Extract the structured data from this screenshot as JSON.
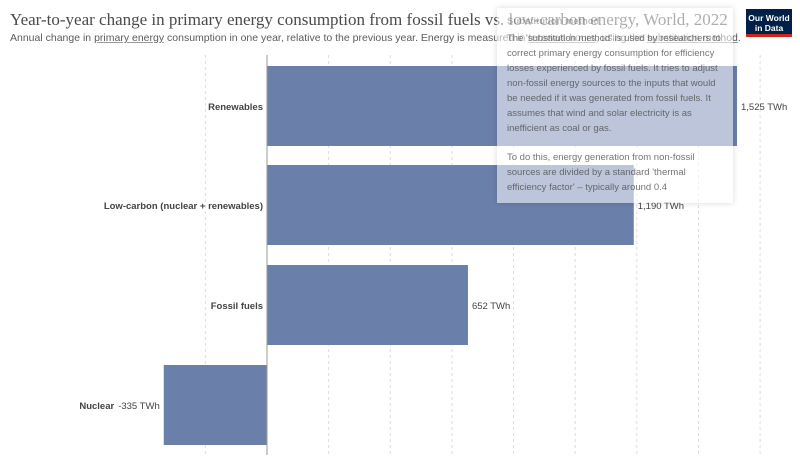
{
  "header": {
    "title": "Year-to-year change in primary energy consumption from fossil fuels vs. low-carbon energy, World, 2022",
    "subtitle_parts": [
      {
        "text": "Annual change in ",
        "u": false
      },
      {
        "text": "primary energy",
        "u": true
      },
      {
        "text": " consumption in one year, relative to the previous year. Energy is measured in ",
        "u": false
      },
      {
        "text": "terawatt-hours",
        "u": true
      },
      {
        "text": ", using the ",
        "u": false
      },
      {
        "text": "substitution method",
        "u": true
      },
      {
        "text": ".",
        "u": false
      }
    ],
    "logo_line1": "Our World",
    "logo_line2": "in Data"
  },
  "tooltip": {
    "title": "Substitution method",
    "p1": "The 'substitution method' is used by researchers to correct primary energy consumption for efficiency losses experienced by fossil fuels. It tries to adjust non-fossil energy sources to the inputs that would be needed if it was generated from fossil fuels. It assumes that wind and solar electricity is as inefficient as coal or gas.",
    "p2": "To do this, energy generation from non-fossil sources are divided by a standard 'thermal efficiency factor' – typically around 0.4"
  },
  "chart_data": {
    "type": "bar",
    "orientation": "horizontal",
    "categories": [
      "Renewables",
      "Low-carbon (nuclear + renewables)",
      "Fossil fuels",
      "Nuclear"
    ],
    "values": [
      1525,
      1190,
      652,
      -335
    ],
    "value_labels": [
      "1,525 TWh",
      "1,190 TWh",
      "652 TWh",
      "-335 TWh"
    ],
    "unit": "TWh",
    "xlim": [
      -400,
      1600
    ],
    "grid": true,
    "colors": {
      "bar": "#6b7fab",
      "grid": "#dddddd",
      "zero_line": "#999999",
      "text": "#444444"
    }
  }
}
